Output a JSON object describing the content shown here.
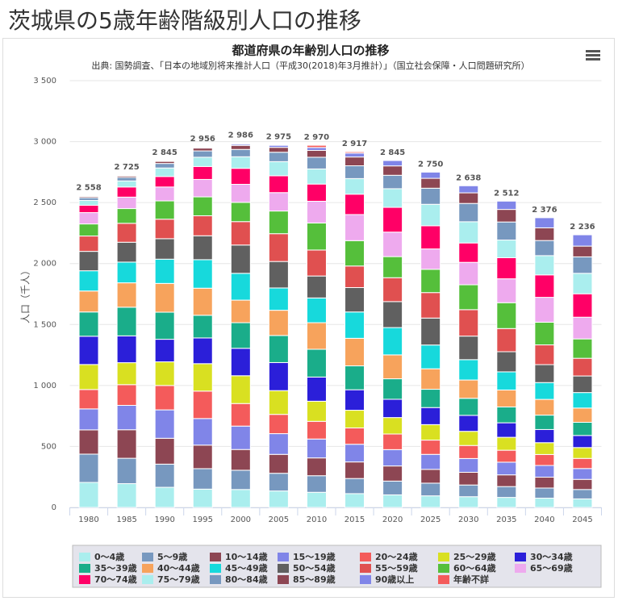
{
  "page_title": "茨城県の5歳年齢階級別人口の推移",
  "chart_data": {
    "type": "stacked-bar",
    "title": "都道府県の年齢別人口の推移",
    "subtitle": "出典: 国勢調査、「日本の地域別将来推計人口（平成30(2018)年3月推計）」（国立社会保障・人口問題研究所）",
    "y_label": "人口（千人）",
    "categories": [
      "1980",
      "1985",
      "1990",
      "1995",
      "2000",
      "2005",
      "2010",
      "2015",
      "2020",
      "2025",
      "2030",
      "2035",
      "2040",
      "2045"
    ],
    "stack_labels": [
      "2 558",
      "2 725",
      "2 845",
      "2 956",
      "2 986",
      "2 975",
      "2 970",
      "2 917",
      "2 845",
      "2 750",
      "2 638",
      "2 512",
      "2 376",
      "2 236"
    ],
    "ylim": [
      0,
      3500
    ],
    "yticks": [
      0,
      500,
      {
        "value": 1000,
        "label": "1 000"
      },
      {
        "value": 1500,
        "label": "1 500"
      },
      {
        "value": 2000,
        "label": "2 000"
      },
      {
        "value": 2500,
        "label": "2 500"
      },
      {
        "value": 3000,
        "label": "3 000"
      },
      {
        "value": 3500,
        "label": "3 500"
      }
    ],
    "grid": true,
    "series": [
      {
        "name": "0〜4歳",
        "color": "#aaeeee",
        "values": [
          205,
          195,
          165,
          150,
          147,
          135,
          124,
          113,
          103,
          95,
          88,
          82,
          76,
          70
        ]
      },
      {
        "name": "5〜9歳",
        "color": "#7798bf",
        "values": [
          232,
          208,
          190,
          168,
          158,
          145,
          136,
          124,
          113,
          104,
          96,
          89,
          83,
          77
        ]
      },
      {
        "name": "10〜14歳",
        "color": "#8d4653",
        "values": [
          199,
          234,
          212,
          193,
          170,
          155,
          146,
          136,
          124,
          113,
          104,
          96,
          89,
          83
        ]
      },
      {
        "name": "15〜19歳",
        "color": "#8085e8",
        "values": [
          172,
          200,
          233,
          218,
          192,
          170,
          155,
          145,
          134,
          123,
          113,
          104,
          96,
          89
        ]
      },
      {
        "name": "20〜24歳",
        "color": "#f45b5b",
        "values": [
          159,
          170,
          200,
          225,
          185,
          158,
          145,
          134,
          128,
          117,
          107,
          98,
          90,
          83
        ]
      },
      {
        "name": "25〜29歳",
        "color": "#d9e021",
        "values": [
          205,
          180,
          194,
          225,
          228,
          195,
          165,
          145,
          135,
          127,
          116,
          106,
          97,
          89
        ]
      },
      {
        "name": "30〜34歳",
        "color": "#2b1fd9",
        "values": [
          232,
          220,
          185,
          211,
          225,
          230,
          198,
          168,
          150,
          140,
          131,
          119,
          108,
          99
        ]
      },
      {
        "name": "35〜39歳",
        "color": "#1aad8a",
        "values": [
          199,
          235,
          222,
          186,
          210,
          222,
          228,
          196,
          168,
          150,
          140,
          130,
          118,
          108
        ]
      },
      {
        "name": "40〜44歳",
        "color": "#f7a35c",
        "values": [
          172,
          200,
          236,
          222,
          185,
          207,
          218,
          226,
          196,
          168,
          150,
          139,
          129,
          117
        ]
      },
      {
        "name": "45〜49歳",
        "color": "#17d9dc",
        "values": [
          166,
          170,
          199,
          234,
          220,
          183,
          203,
          216,
          224,
          195,
          167,
          149,
          138,
          127
        ]
      },
      {
        "name": "50〜54歳",
        "color": "#606060",
        "values": [
          159,
          163,
          168,
          196,
          232,
          217,
          180,
          200,
          213,
          221,
          193,
          165,
          147,
          136
        ]
      },
      {
        "name": "55〜59歳",
        "color": "#e05050",
        "values": [
          126,
          155,
          160,
          164,
          192,
          228,
          213,
          177,
          196,
          209,
          217,
          190,
          162,
          145
        ]
      },
      {
        "name": "60〜64歳",
        "color": "#55bf3b",
        "values": [
          99,
          121,
          150,
          155,
          158,
          186,
          222,
          208,
          173,
          191,
          204,
          212,
          186,
          159
        ]
      },
      {
        "name": "65〜69歳",
        "color": "#eeaaee",
        "values": [
          93,
          94,
          114,
          143,
          148,
          151,
          178,
          214,
          201,
          167,
          184,
          196,
          204,
          178
        ]
      },
      {
        "name": "70〜74歳",
        "color": "#ff0066",
        "values": [
          60,
          83,
          86,
          106,
          131,
          138,
          141,
          167,
          203,
          190,
          159,
          173,
          184,
          192
        ]
      },
      {
        "name": "75〜79歳",
        "color": "#aaeeee",
        "values": [
          40,
          50,
          70,
          76,
          95,
          116,
          124,
          128,
          153,
          176,
          174,
          145,
          158,
          168
        ]
      },
      {
        "name": "80〜84歳",
        "color": "#7798bf",
        "values": [
          22,
          28,
          37,
          52,
          60,
          77,
          96,
          105,
          110,
          132,
          150,
          148,
          124,
          135
        ]
      },
      {
        "name": "85〜89歳",
        "color": "#8d4653",
        "values": [
          10,
          12,
          17,
          23,
          33,
          40,
          56,
          72,
          77,
          81,
          87,
          103,
          104,
          88
        ]
      },
      {
        "name": "90歳以上",
        "color": "#8085e8",
        "values": [
          2,
          3,
          4,
          7,
          11,
          17,
          24,
          32,
          44,
          51,
          58,
          68,
          83,
          93
        ]
      },
      {
        "name": "年齢不詳",
        "color": "#f45b5b",
        "values": [
          6,
          4,
          3,
          2,
          6,
          5,
          18,
          11,
          0,
          0,
          0,
          0,
          0,
          0
        ]
      }
    ]
  }
}
